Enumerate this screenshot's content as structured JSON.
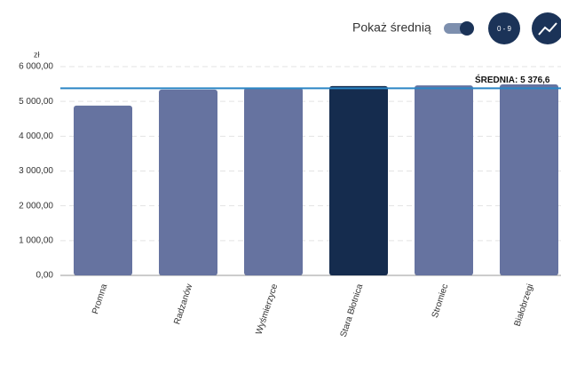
{
  "toolbar": {
    "toggle_label": "Pokaż średnią",
    "range_button": "0 - 9"
  },
  "chart_data": {
    "type": "bar",
    "y_unit": "zł",
    "categories": [
      "Promna",
      "Radzanów",
      "Wyśmierzyce",
      "Stara Błotnica",
      "Stromiec",
      "Białobrzegi"
    ],
    "values": [
      4880,
      5340,
      5390,
      5440,
      5460,
      5490
    ],
    "colors": [
      "#6673a0",
      "#6673a0",
      "#6673a0",
      "#152c4e",
      "#6673a0",
      "#6673a0"
    ],
    "ylim": [
      0,
      6000
    ],
    "yticks": [
      {
        "value": 0,
        "label": "0,00"
      },
      {
        "value": 1000,
        "label": "1 000,00"
      },
      {
        "value": 2000,
        "label": "2 000,00"
      },
      {
        "value": 3000,
        "label": "3 000,00"
      },
      {
        "value": 4000,
        "label": "4 000,00"
      },
      {
        "value": 5000,
        "label": "5 000,00"
      },
      {
        "value": 6000,
        "label": "6 000,00"
      }
    ],
    "grid": true,
    "average": {
      "value": 5376.6,
      "label": "ŚREDNIA: 5 376,6",
      "color": "#2b86c5"
    }
  }
}
